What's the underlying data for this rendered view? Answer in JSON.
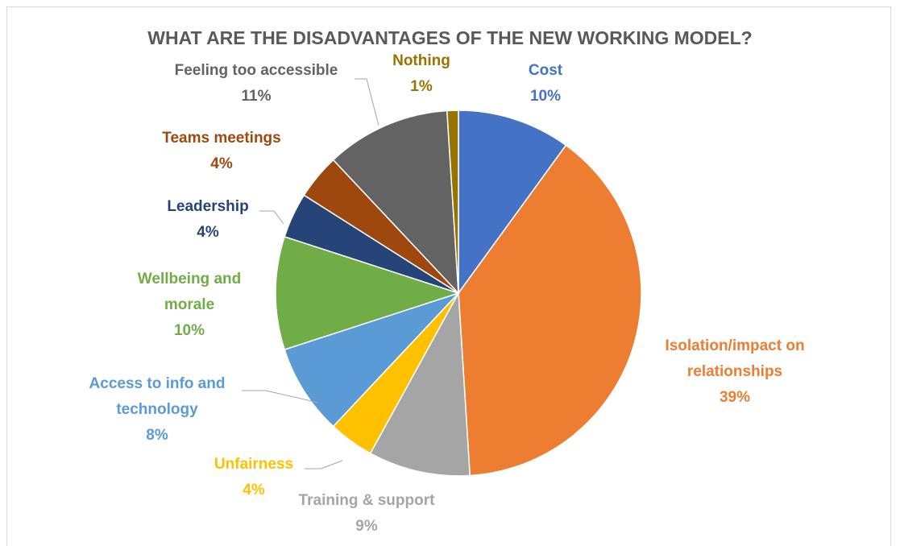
{
  "chart_data": {
    "type": "pie",
    "title": "WHAT ARE THE DISADVANTAGES OF THE NEW WORKING MODEL?",
    "categories": [
      "Cost",
      "Isolation/impact on relationships",
      "Training & support",
      "Unfairness",
      "Access to info and technology",
      "Wellbeing and morale",
      "Leadership",
      "Teams meetings",
      "Feeling too accessible",
      "Nothing"
    ],
    "values": [
      10,
      39,
      9,
      4,
      8,
      10,
      4,
      4,
      11,
      1
    ],
    "value_labels": [
      "10%",
      "39%",
      "9%",
      "4%",
      "8%",
      "10%",
      "4%",
      "4%",
      "11%",
      "1%"
    ],
    "colors": [
      "#4472c4",
      "#ed7d31",
      "#a5a5a5",
      "#ffc000",
      "#5b9bd5",
      "#70ad47",
      "#264478",
      "#9e480e",
      "#636363",
      "#997300"
    ]
  }
}
